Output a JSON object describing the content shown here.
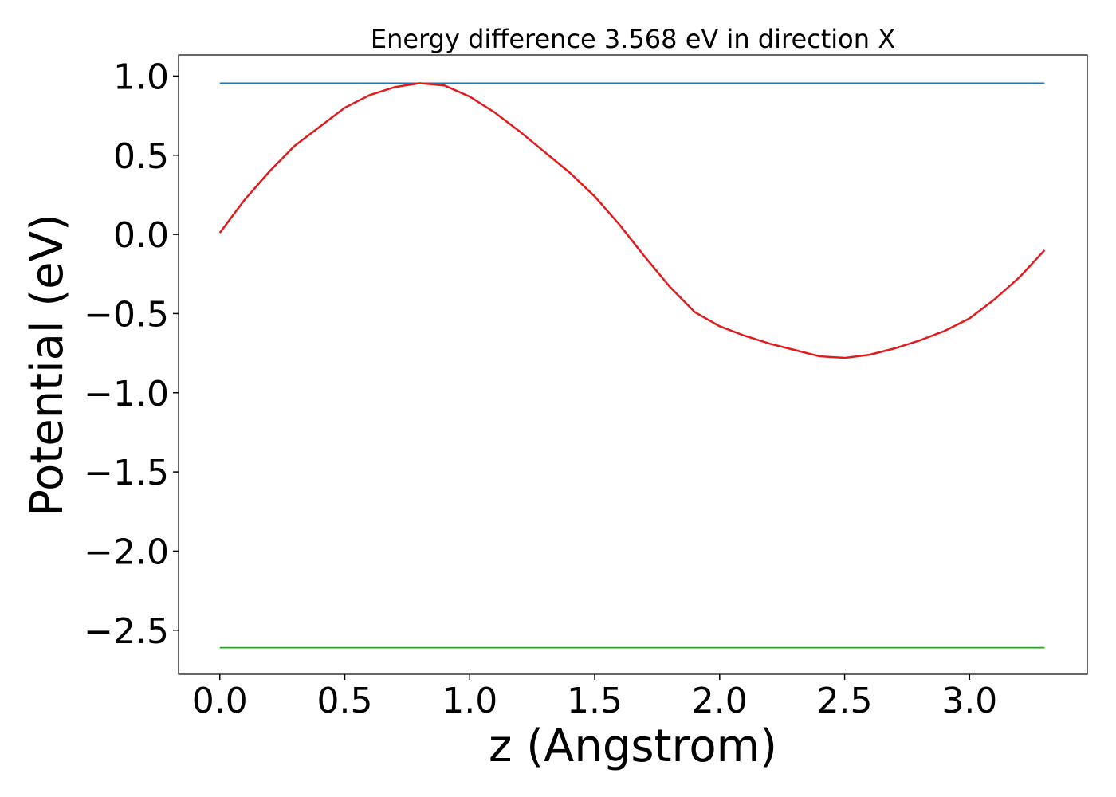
{
  "chart_data": {
    "type": "line",
    "title": "Energy difference 3.568 eV in direction X",
    "xlabel": "z (Angstrom)",
    "ylabel": "Potential (eV)",
    "series": [
      {
        "color": "#1f77b4",
        "x": [
          0.0,
          3.3
        ],
        "values": [
          0.955,
          0.955
        ]
      },
      {
        "color": "#2ca02c",
        "x": [
          0.0,
          3.3
        ],
        "values": [
          -2.61,
          -2.61
        ]
      },
      {
        "color": "#e31a1c",
        "x": [
          0.0,
          0.1,
          0.2,
          0.3,
          0.4,
          0.5,
          0.6,
          0.7,
          0.8,
          0.9,
          1.0,
          1.1,
          1.2,
          1.3,
          1.4,
          1.5,
          1.6,
          1.7,
          1.8,
          1.9,
          2.0,
          2.1,
          2.2,
          2.3,
          2.4,
          2.5,
          2.6,
          2.7,
          2.8,
          2.9,
          3.0,
          3.1,
          3.2,
          3.3
        ],
        "values": [
          0.01,
          0.22,
          0.4,
          0.56,
          0.68,
          0.8,
          0.88,
          0.93,
          0.955,
          0.94,
          0.87,
          0.77,
          0.65,
          0.52,
          0.39,
          0.24,
          0.06,
          -0.14,
          -0.33,
          -0.49,
          -0.58,
          -0.64,
          -0.69,
          -0.73,
          -0.77,
          -0.78,
          -0.76,
          -0.72,
          -0.67,
          -0.61,
          -0.53,
          -0.41,
          -0.27,
          -0.1
        ]
      }
    ],
    "xlim": [
      -0.165,
      3.471
    ],
    "ylim": [
      -2.778,
      1.133
    ],
    "xticks": [
      {
        "value": 0,
        "label": "0.0"
      },
      {
        "value": 0.5,
        "label": "0.5"
      },
      {
        "value": 1,
        "label": "1.0"
      },
      {
        "value": 1.5,
        "label": "1.5"
      },
      {
        "value": 2,
        "label": "2.0"
      },
      {
        "value": 2.5,
        "label": "2.5"
      },
      {
        "value": 3,
        "label": "3.0"
      }
    ],
    "yticks": [
      {
        "value": -2.5,
        "label": "−2.5"
      },
      {
        "value": -2,
        "label": "−2.0"
      },
      {
        "value": -1.5,
        "label": "−1.5"
      },
      {
        "value": -1,
        "label": "−1.0"
      },
      {
        "value": -0.5,
        "label": "−0.5"
      },
      {
        "value": 0,
        "label": "0.0"
      },
      {
        "value": 0.5,
        "label": "0.5"
      },
      {
        "value": 1,
        "label": "1.0"
      }
    ],
    "grid": false
  }
}
